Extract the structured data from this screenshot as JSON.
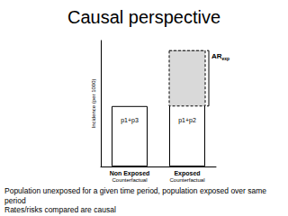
{
  "chart_data": {
    "type": "bar",
    "title": "Causal perspective",
    "categories": [
      "Non Exposed",
      "Exposed"
    ],
    "category_notes": [
      "Counterfactual",
      "Counterfactual"
    ],
    "values": [
      48,
      92
    ],
    "bar_texts": [
      "p1+p3",
      "p1+p2"
    ],
    "y_label": "Incidence (per 1000)",
    "ylim": [
      0,
      100
    ],
    "tick_labels": false,
    "grid": false,
    "color": "#ffffff",
    "annotation": {
      "text": "AR",
      "subscript": "exp",
      "color": "#d9d9d9"
    },
    "captions": [
      "Population unexposed for a given time period, population exposed over same period",
      "Rates/risks compared are causal"
    ]
  }
}
